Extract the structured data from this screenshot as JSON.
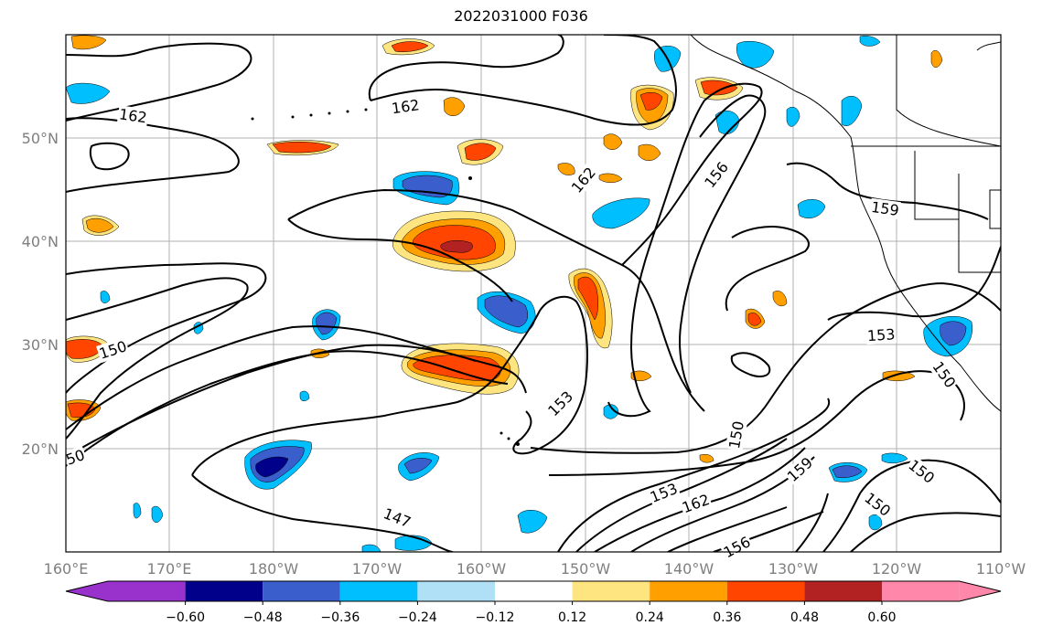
{
  "title": "2022031000 F036",
  "map": {
    "lon_range": [
      "160°E",
      "110°W"
    ],
    "lat_range": [
      "10°N",
      "60°N"
    ],
    "x_ticks": [
      "160°E",
      "170°E",
      "180°W",
      "170°W",
      "160°W",
      "150°W",
      "140°W",
      "130°W",
      "120°W",
      "110°W"
    ],
    "y_ticks": [
      "20°N",
      "30°N",
      "40°N",
      "50°N"
    ],
    "grid": true,
    "contour_labels": [
      "162",
      "162",
      "162",
      "156",
      "159",
      "150",
      "153",
      "150",
      "153",
      "150",
      "153",
      "162",
      "159",
      "150",
      "150",
      "147",
      "156",
      "50"
    ]
  },
  "colorbar": {
    "tick_labels": [
      "−0.60",
      "−0.48",
      "−0.36",
      "−0.24",
      "−0.12",
      "0.12",
      "0.24",
      "0.36",
      "0.48",
      "0.60"
    ],
    "colors": [
      "#9932cc",
      "#00008b",
      "#3a5fcd",
      "#00bfff",
      "#b0e0f6",
      "#ffffff",
      "#ffe57f",
      "#ff9f00",
      "#ff4500",
      "#b22222",
      "#ff88aa"
    ]
  }
}
